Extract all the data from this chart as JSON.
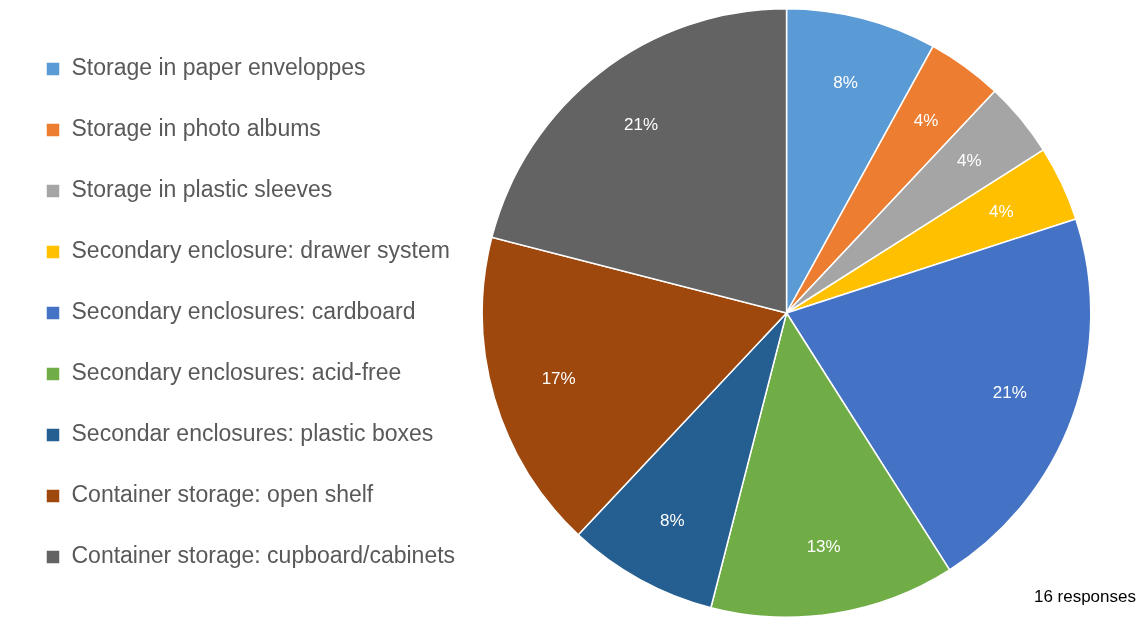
{
  "chart_data": {
    "type": "pie",
    "categories": [
      "Storage in paper enveloppes",
      "Storage in photo albums",
      "Storage in plastic sleeves",
      "Secondary enclosure: drawer system",
      "Secondary enclosures: cardboard",
      "Secondary enclosures: acid-free",
      "Secondar enclosures: plastic boxes",
      "Container storage: open shelf",
      "Container storage: cupboard/cabinets"
    ],
    "values": [
      8,
      4,
      4,
      4,
      21,
      13,
      8,
      17,
      21
    ],
    "colors": [
      "#5b9bd5",
      "#ed7d31",
      "#a5a5a5",
      "#ffc000",
      "#4472c4",
      "#70ad47",
      "#255e91",
      "#9e480e",
      "#636363"
    ],
    "legend": "left",
    "value_labels": [
      "8%",
      "4%",
      "4%",
      "4%",
      "21%",
      "13%",
      "8%",
      "17%",
      "21%"
    ],
    "annotations": [
      "16 responses"
    ]
  }
}
